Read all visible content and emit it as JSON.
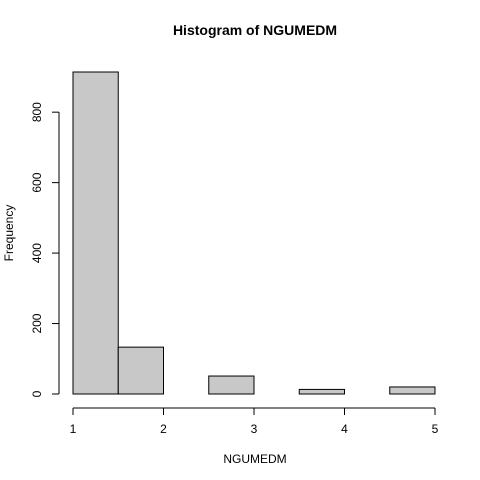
{
  "chart_data": {
    "type": "bar",
    "title": "Histogram of NGUMEDM",
    "xlabel": "NGUMEDM",
    "ylabel": "Frequency",
    "bins": [
      {
        "from": 1.0,
        "to": 1.5,
        "value": 914
      },
      {
        "from": 1.5,
        "to": 2.0,
        "value": 133
      },
      {
        "from": 2.0,
        "to": 2.5,
        "value": 0
      },
      {
        "from": 2.5,
        "to": 3.0,
        "value": 51
      },
      {
        "from": 3.0,
        "to": 3.5,
        "value": 0
      },
      {
        "from": 3.5,
        "to": 4.0,
        "value": 13
      },
      {
        "from": 4.0,
        "to": 4.5,
        "value": 0
      },
      {
        "from": 4.5,
        "to": 5.0,
        "value": 20
      }
    ],
    "xlim": [
      1,
      5
    ],
    "ylim": [
      0,
      914
    ],
    "xticks": [
      "1",
      "2",
      "3",
      "4",
      "5"
    ],
    "yticks": [
      "0",
      "200",
      "400",
      "600",
      "800"
    ],
    "bar_color": "#c8c8c8",
    "grid": false
  }
}
